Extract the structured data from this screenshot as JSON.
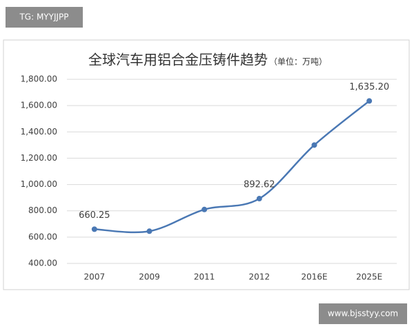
{
  "chart_data": {
    "type": "line",
    "title": "全球汽车用铝合金压铸件趋势",
    "subtitle": "（单位：万吨）",
    "categories": [
      "2007",
      "2009",
      "2011",
      "2012",
      "2016E",
      "2025E"
    ],
    "values": [
      660.25,
      645,
      810,
      892.62,
      1300,
      1635.2
    ],
    "value_labels": [
      "660.25",
      null,
      null,
      "892.62",
      null,
      "1,635.20"
    ],
    "color": "#4a78b4",
    "ylim": [
      400,
      1800
    ],
    "yticks": [
      {
        "value": 400,
        "label": "400.00"
      },
      {
        "value": 600,
        "label": "600.00"
      },
      {
        "value": 800,
        "label": "800.00"
      },
      {
        "value": 1000,
        "label": "1,000.00"
      },
      {
        "value": 1200,
        "label": "1,200.00"
      },
      {
        "value": 1400,
        "label": "1,400.00"
      },
      {
        "value": 1600,
        "label": "1,600.00"
      },
      {
        "value": 1800,
        "label": "1,800.00"
      }
    ],
    "grid": true
  },
  "watermarks": [
    "TG: MYYJJPP",
    "www.bjsstyy.com"
  ]
}
